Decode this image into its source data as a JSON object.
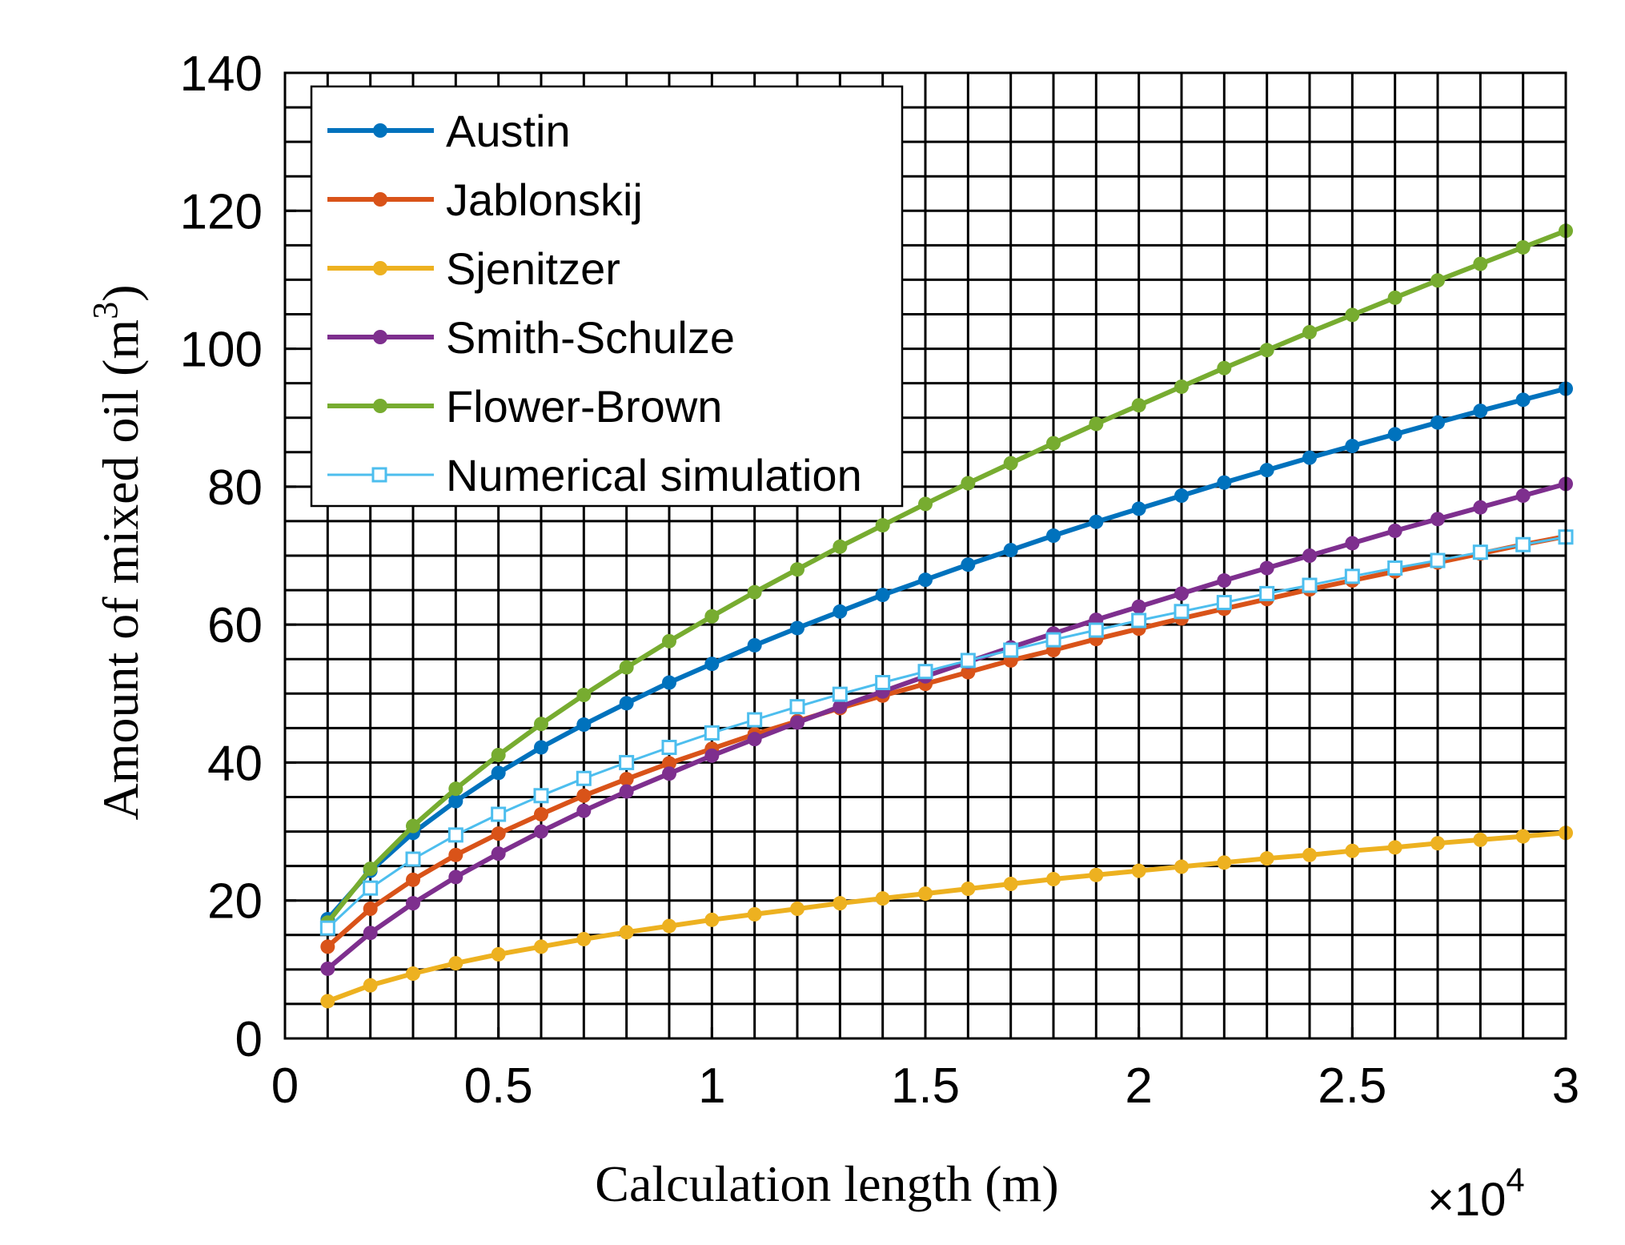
{
  "chart_data": {
    "type": "line",
    "title": "",
    "xlabel": "Calculation length (m)",
    "ylabel_main": "Amount of mixed oil (m",
    "ylabel_sup": "3",
    "ylabel_close": ")",
    "x_multiplier_base": "×10",
    "x_multiplier_exp": "4",
    "xlim": [
      0,
      3
    ],
    "ylim": [
      0,
      140
    ],
    "xticks": [
      "0",
      "0.5",
      "1",
      "1.5",
      "2",
      "2.5",
      "3"
    ],
    "yticks": [
      "0",
      "20",
      "40",
      "60",
      "80",
      "100",
      "120",
      "140"
    ],
    "grid": true,
    "legend_position": "top-left",
    "x": [
      0.1,
      0.2,
      0.3,
      0.4,
      0.5,
      0.6,
      0.7,
      0.8,
      0.9,
      1.0,
      1.1,
      1.2,
      1.3,
      1.4,
      1.5,
      1.6,
      1.7,
      1.8,
      1.9,
      2.0,
      2.1,
      2.2,
      2.3,
      2.4,
      2.5,
      2.6,
      2.7,
      2.8,
      2.9,
      3.0
    ],
    "series": [
      {
        "name": "Austin",
        "color": "#0072BD",
        "marker": "dot",
        "values": [
          17.3,
          24.3,
          29.8,
          34.4,
          38.5,
          42.2,
          45.5,
          48.6,
          51.6,
          54.3,
          57.0,
          59.5,
          61.9,
          64.3,
          66.5,
          68.7,
          70.8,
          72.9,
          74.9,
          76.8,
          78.7,
          80.6,
          82.4,
          84.2,
          85.9,
          87.6,
          89.3,
          91.0,
          92.6,
          94.2
        ]
      },
      {
        "name": "Jablonskij",
        "color": "#D95319",
        "marker": "dot",
        "values": [
          13.3,
          18.8,
          23.0,
          26.6,
          29.7,
          32.5,
          35.2,
          37.6,
          39.9,
          42.0,
          44.1,
          46.0,
          47.9,
          49.7,
          51.4,
          53.1,
          54.8,
          56.3,
          57.9,
          59.4,
          60.9,
          62.3,
          63.7,
          65.1,
          66.4,
          67.7,
          69.0,
          70.3,
          71.6,
          72.8
        ]
      },
      {
        "name": "Sjenitzer",
        "color": "#EDB120",
        "marker": "dot",
        "values": [
          5.4,
          7.7,
          9.4,
          10.9,
          12.2,
          13.3,
          14.4,
          15.4,
          16.3,
          17.2,
          18.0,
          18.8,
          19.6,
          20.3,
          21.0,
          21.7,
          22.4,
          23.1,
          23.7,
          24.3,
          24.9,
          25.5,
          26.1,
          26.6,
          27.2,
          27.7,
          28.3,
          28.8,
          29.3,
          29.8
        ]
      },
      {
        "name": "Smith-Schulze",
        "color": "#7E2F8E",
        "marker": "dot",
        "values": [
          10.1,
          15.3,
          19.6,
          23.4,
          26.8,
          30.0,
          33.0,
          35.8,
          38.4,
          41.0,
          43.4,
          45.8,
          48.1,
          50.3,
          52.5,
          54.6,
          56.7,
          58.7,
          60.7,
          62.6,
          64.5,
          66.4,
          68.2,
          70.0,
          71.8,
          73.6,
          75.3,
          77.0,
          78.7,
          80.4
        ]
      },
      {
        "name": "Flower-Brown",
        "color": "#77AC30",
        "marker": "dot",
        "values": [
          16.8,
          24.6,
          30.8,
          36.2,
          41.1,
          45.6,
          49.8,
          53.8,
          57.6,
          61.2,
          64.7,
          68.0,
          71.3,
          74.4,
          77.5,
          80.5,
          83.4,
          86.3,
          89.1,
          91.8,
          94.5,
          97.2,
          99.8,
          102.4,
          104.9,
          107.4,
          109.9,
          112.3,
          114.7,
          117.1
        ]
      },
      {
        "name": "Numerical  simulation",
        "color": "#4DBEEE",
        "marker": "square",
        "values": [
          16.0,
          21.8,
          26.0,
          29.5,
          32.5,
          35.2,
          37.7,
          40.0,
          42.2,
          44.3,
          46.2,
          48.1,
          49.9,
          51.6,
          53.2,
          54.8,
          56.3,
          57.8,
          59.2,
          60.6,
          61.9,
          63.2,
          64.5,
          65.7,
          67.0,
          68.2,
          69.3,
          70.5,
          71.6,
          72.7
        ]
      }
    ]
  }
}
